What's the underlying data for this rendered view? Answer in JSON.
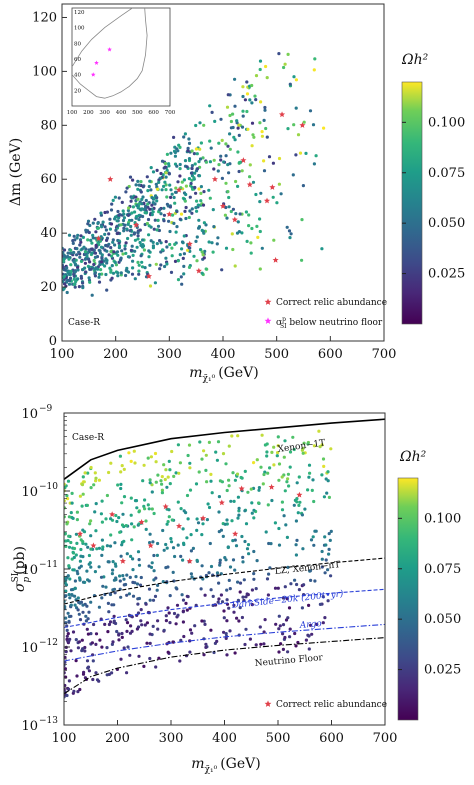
{
  "chart_data": [
    {
      "type": "scatter",
      "panel_label": "Case-R",
      "xlabel_main": "m",
      "xlabel_sub": "χ̃₁⁰",
      "xlabel_unit": "(GeV)",
      "ylabel": "Δm (GeV)",
      "xlim": [
        100,
        700
      ],
      "ylim": [
        0,
        125
      ],
      "xticks": [
        100,
        200,
        300,
        400,
        500,
        600,
        700
      ],
      "yticks": [
        0,
        20,
        40,
        60,
        80,
        100,
        120
      ],
      "colorbar": {
        "label": "Ωh²",
        "range": [
          0.0,
          0.12
        ],
        "ticks": [
          0.025,
          0.05,
          0.075,
          0.1
        ],
        "tick_labels": [
          "0.025",
          "0.050",
          "0.075",
          "0.100"
        ],
        "colormap": "viridis"
      },
      "legend": {
        "placement": "bottom-right",
        "entries": [
          {
            "label": "Correct relic abundance",
            "marker": "star",
            "color": "#e0404a"
          },
          {
            "label": "σ below neutrino floor",
            "sym": "σ",
            "sup": "p",
            "sub": "SI",
            "tail": " below neutrino floor",
            "marker": "star",
            "color": "#ff33ff"
          }
        ]
      },
      "points_seed": 1,
      "points_count": 950,
      "relic_points": [
        [
          168,
          38
        ],
        [
          190,
          60
        ],
        [
          238,
          43
        ],
        [
          262,
          24
        ],
        [
          300,
          47
        ],
        [
          318,
          56
        ],
        [
          338,
          36
        ],
        [
          355,
          26
        ],
        [
          385,
          60
        ],
        [
          400,
          50
        ],
        [
          422,
          45
        ],
        [
          438,
          67
        ],
        [
          450,
          58
        ],
        [
          482,
          52
        ],
        [
          492,
          57
        ],
        [
          498,
          30
        ],
        [
          510,
          84
        ],
        [
          548,
          80
        ]
      ],
      "inset": {
        "xlim": [
          100,
          700
        ],
        "ylim": [
          0,
          125
        ],
        "xticks": [
          100,
          200,
          300,
          400,
          500,
          600,
          700
        ],
        "yticks": [
          20,
          40,
          60,
          80,
          100,
          120
        ],
        "outline": [
          [
            100,
            40
          ],
          [
            150,
            28
          ],
          [
            200,
            20
          ],
          [
            250,
            12
          ],
          [
            300,
            10
          ],
          [
            350,
            13
          ],
          [
            400,
            18
          ],
          [
            450,
            25
          ],
          [
            500,
            35
          ],
          [
            530,
            45
          ],
          [
            550,
            65
          ],
          [
            560,
            90
          ],
          [
            550,
            110
          ],
          [
            545,
            125
          ]
        ],
        "outline_upper": [
          [
            100,
            50
          ],
          [
            160,
            70
          ],
          [
            220,
            85
          ],
          [
            300,
            100
          ],
          [
            400,
            115
          ],
          [
            470,
            125
          ]
        ],
        "neutrino_floor_points": [
          [
            230,
            40
          ],
          [
            250,
            55
          ],
          [
            330,
            72
          ]
        ]
      }
    },
    {
      "type": "scatter",
      "panel_label": "Case-R",
      "xlabel_main": "m",
      "xlabel_sub": "χ̃₁⁰",
      "xlabel_unit": "(GeV)",
      "ylabel_main": "σ",
      "ylabel_sup": "SI",
      "ylabel_sub": "p",
      "ylabel_unit": "(pb)",
      "xlim": [
        100,
        700
      ],
      "ylim_log10": [
        -13,
        -9
      ],
      "log_y": true,
      "xticks": [
        100,
        200,
        300,
        400,
        500,
        600,
        700
      ],
      "yticks_log10": [
        -13,
        -12,
        -11,
        -10,
        -9
      ],
      "ytick_labels": [
        "10",
        "10",
        "10",
        "10",
        "10"
      ],
      "ytick_exps": [
        "−13",
        "−12",
        "−11",
        "−10",
        "−9"
      ],
      "colorbar": {
        "label": "Ωh²",
        "range": [
          0.0,
          0.12
        ],
        "ticks": [
          0.025,
          0.05,
          0.075,
          0.1
        ],
        "tick_labels": [
          "0.025",
          "0.050",
          "0.075",
          "0.100"
        ],
        "colormap": "viridis"
      },
      "curves": [
        {
          "name": "Xenon−1T",
          "style": "solid",
          "color": "#000000",
          "points": [
            [
              100,
              -9.85
            ],
            [
              150,
              -9.6
            ],
            [
              200,
              -9.48
            ],
            [
              300,
              -9.33
            ],
            [
              400,
              -9.25
            ],
            [
              500,
              -9.19
            ],
            [
              600,
              -9.13
            ],
            [
              700,
              -9.08
            ]
          ]
        },
        {
          "name": "LZ, Xenon−nT",
          "style": "dash",
          "color": "#000000",
          "points": [
            [
              100,
              -11.45
            ],
            [
              200,
              -11.28
            ],
            [
              300,
              -11.16
            ],
            [
              400,
              -11.07
            ],
            [
              500,
              -10.99
            ],
            [
              600,
              -10.92
            ],
            [
              700,
              -10.86
            ]
          ]
        },
        {
          "name": "DarkSide−20k (200t•yr)",
          "style": "dash",
          "color": "#2a3fd8",
          "points": [
            [
              100,
              -11.75
            ],
            [
              200,
              -11.62
            ],
            [
              300,
              -11.52
            ],
            [
              400,
              -11.44
            ],
            [
              500,
              -11.37
            ],
            [
              600,
              -11.31
            ],
            [
              700,
              -11.26
            ]
          ]
        },
        {
          "name": "Argo",
          "style": "dashdot",
          "color": "#2a3fd8",
          "points": [
            [
              100,
              -12.18
            ],
            [
              200,
              -12.05
            ],
            [
              300,
              -11.95
            ],
            [
              400,
              -11.87
            ],
            [
              500,
              -11.81
            ],
            [
              600,
              -11.76
            ],
            [
              700,
              -11.71
            ]
          ]
        },
        {
          "name": "Neutrino Floor",
          "style": "dashdot",
          "color": "#000000",
          "points": [
            [
              100,
              -12.6
            ],
            [
              150,
              -12.38
            ],
            [
              200,
              -12.27
            ],
            [
              300,
              -12.13
            ],
            [
              400,
              -12.04
            ],
            [
              500,
              -11.98
            ],
            [
              600,
              -11.93
            ],
            [
              700,
              -11.88
            ]
          ]
        }
      ],
      "legend": {
        "placement": "bottom-right",
        "entries": [
          {
            "label": "Correct relic abundance",
            "marker": "star",
            "color": "#e0404a"
          }
        ]
      },
      "points_seed": 7,
      "points_count": 900,
      "relic_points": [
        [
          130,
          -10.55
        ],
        [
          155,
          -10.7
        ],
        [
          190,
          -10.3
        ],
        [
          210,
          -10.9
        ],
        [
          245,
          -10.4
        ],
        [
          262,
          -10.7
        ],
        [
          290,
          -10.2
        ],
        [
          315,
          -10.45
        ],
        [
          335,
          -10.9
        ],
        [
          360,
          -10.35
        ],
        [
          395,
          -10.15
        ],
        [
          420,
          -10.55
        ],
        [
          432,
          -9.97
        ],
        [
          488,
          -9.95
        ],
        [
          540,
          -10.05
        ]
      ]
    }
  ]
}
